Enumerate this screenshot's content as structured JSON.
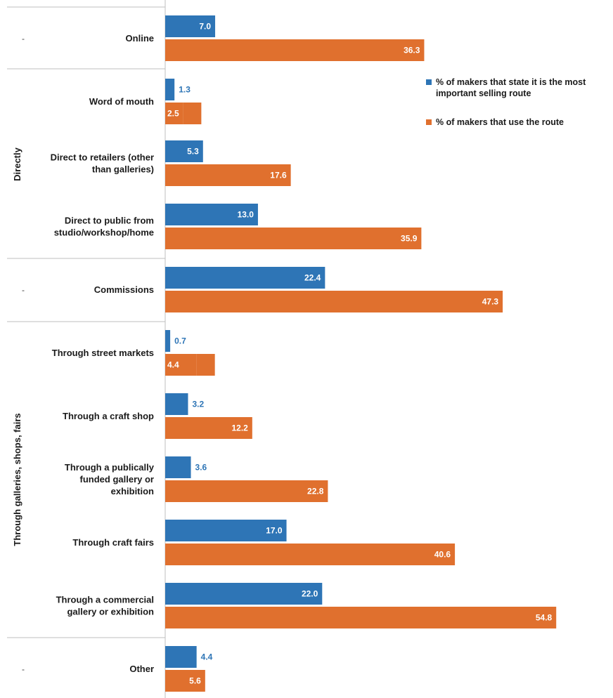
{
  "chart_data": {
    "type": "bar",
    "orientation": "horizontal",
    "categories": [
      "Online",
      "Word of mouth",
      "Direct to retailers (other than galleries)",
      "Direct to public from studio/workshop/home",
      "Commissions",
      "Through street markets",
      "Through a craft shop",
      "Through a publically funded gallery or exhibition",
      "Through craft fairs",
      "Through a commercial gallery or exhibition",
      "Other"
    ],
    "category_label_lines": [
      [
        "Online"
      ],
      [
        "Word of mouth"
      ],
      [
        "Direct to retailers (other",
        "than galleries)"
      ],
      [
        "Direct to public from",
        "studio/workshop/home"
      ],
      [
        "Commissions"
      ],
      [
        "Through street markets"
      ],
      [
        "Through a craft shop"
      ],
      [
        "Through a publically",
        "funded gallery or",
        "exhibition"
      ],
      [
        "Through craft fairs"
      ],
      [
        "Through a commercial",
        "gallery or exhibition"
      ],
      [
        "Other"
      ]
    ],
    "groups": [
      {
        "label": "-",
        "categories": [
          0
        ]
      },
      {
        "label": "Directly",
        "categories": [
          1,
          2,
          3
        ]
      },
      {
        "label": "-",
        "categories": [
          4
        ]
      },
      {
        "label": "Through galleries, shops, fairs",
        "categories": [
          5,
          6,
          7,
          8,
          9
        ]
      },
      {
        "label": "-",
        "categories": [
          10
        ]
      }
    ],
    "series": [
      {
        "name": "% of makers that state it is the most important selling route",
        "name_lines": [
          "% of makers that state it is the most",
          "important selling route"
        ],
        "color": "#2e75b6",
        "values": [
          7.0,
          1.3,
          5.3,
          13.0,
          22.4,
          0.7,
          3.2,
          3.6,
          17.0,
          22.0,
          4.4
        ],
        "labels": [
          "7.0",
          "1.3",
          "5.3",
          "13.0",
          "22.4",
          "0.7",
          "3.2",
          "3.6",
          "17.0",
          "22.0",
          "4.4"
        ]
      },
      {
        "name": "% of makers that use the route",
        "name_lines": [
          "% of makers that use the route"
        ],
        "color": "#e0702e",
        "values": [
          36.3,
          2.5,
          17.6,
          35.9,
          47.3,
          4.4,
          12.2,
          22.8,
          40.6,
          54.8,
          5.6
        ],
        "labels": [
          "36.3",
          "2.5",
          "17.6",
          "35.9",
          "47.3",
          "4.4",
          "12.2",
          "22.8",
          "40.6",
          "54.8",
          "5.6"
        ]
      }
    ],
    "xlim": [
      0,
      60
    ],
    "legend_position": "top-right",
    "grid": false,
    "title": "",
    "xlabel": "",
    "ylabel": ""
  }
}
